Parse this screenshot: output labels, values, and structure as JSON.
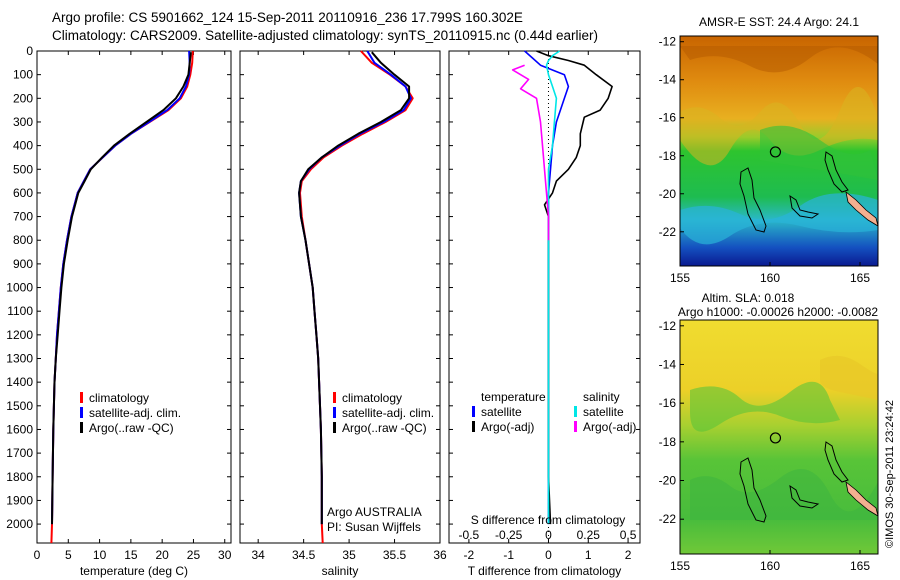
{
  "header": {
    "line1": "Argo profile: CS 5901662_124 15-Sep-2011 20110916_236 17.799S 160.302E",
    "line2": "Climatology: CARS2009. Satellite-adjusted climatology: synTS_20110915.nc (0.44d earlier)"
  },
  "stamp": "©IMOS 30-Sep-2011 23:24:42",
  "colors": {
    "climatology": "#ff0000",
    "satellite": "#0000ff",
    "argo": "#000000",
    "sal_satellite": "#00e6e6",
    "sal_argo": "#ff00ff"
  },
  "chart_data": [
    {
      "type": "line",
      "xlabel": "temperature (deg C)",
      "ylabel": "",
      "xlim": [
        0,
        31
      ],
      "ylim": [
        2080,
        0
      ],
      "xticks": [
        0,
        5,
        10,
        15,
        20,
        25,
        30
      ],
      "yticks": [
        0,
        100,
        200,
        300,
        400,
        500,
        600,
        700,
        800,
        900,
        1000,
        1100,
        1200,
        1300,
        1400,
        1500,
        1600,
        1700,
        1800,
        1900,
        2000
      ],
      "grid": false,
      "legend": {
        "placement": "lower-left",
        "entries": [
          "climatology",
          "satellite-adj. clim.",
          "Argo(..raw -QC)"
        ]
      },
      "series": [
        {
          "name": "climatology",
          "color": "#ff0000",
          "x": [
            24.9,
            24.8,
            24.5,
            24.0,
            23.0,
            21.0,
            18.0,
            15.0,
            12.5,
            10.5,
            8.5,
            7.5,
            6.5,
            5.5,
            4.8,
            4.2,
            3.8,
            3.5,
            3.2,
            3.0,
            2.8,
            2.7,
            2.6,
            2.5,
            2.4,
            2.3
          ],
          "y": [
            0,
            50,
            100,
            150,
            200,
            250,
            300,
            350,
            400,
            450,
            500,
            550,
            600,
            700,
            800,
            900,
            1000,
            1100,
            1200,
            1300,
            1400,
            1500,
            1600,
            1800,
            2000,
            2080
          ]
        },
        {
          "name": "satellite-adj. clim.",
          "color": "#0000ff",
          "x": [
            24.3,
            24.4,
            24.3,
            23.8,
            22.8,
            20.8,
            17.9,
            15.0,
            12.5,
            10.5,
            8.5,
            7.5,
            6.5,
            5.5,
            4.8,
            4.2,
            3.8,
            3.5,
            3.2,
            3.0,
            2.8,
            2.7,
            2.6,
            2.5,
            2.4
          ],
          "y": [
            0,
            50,
            100,
            150,
            200,
            250,
            300,
            350,
            400,
            450,
            500,
            550,
            600,
            700,
            800,
            900,
            1000,
            1100,
            1200,
            1300,
            1400,
            1500,
            1600,
            1800,
            2000
          ]
        },
        {
          "name": "Argo(..raw -QC)",
          "color": "#000000",
          "x": [
            24.6,
            24.4,
            24.2,
            23.4,
            22.2,
            20.2,
            17.5,
            14.8,
            12.3,
            10.4,
            8.6,
            7.6,
            6.6,
            5.6,
            4.9,
            4.3,
            3.9,
            3.6,
            3.3,
            3.0,
            2.8,
            2.7,
            2.6,
            2.5,
            2.4
          ],
          "y": [
            5,
            50,
            100,
            150,
            200,
            250,
            300,
            350,
            400,
            450,
            500,
            550,
            600,
            700,
            800,
            900,
            1000,
            1100,
            1200,
            1300,
            1400,
            1500,
            1600,
            1800,
            2000
          ]
        }
      ]
    },
    {
      "type": "line",
      "xlabel": "salinity",
      "ylabel": "",
      "xlim": [
        33.8,
        36.0
      ],
      "ylim": [
        2080,
        0
      ],
      "xticks": [
        34,
        34.5,
        35,
        35.5,
        36
      ],
      "grid": false,
      "legend": {
        "placement": "lower-right",
        "entries": [
          "climatology",
          "satellite-adj. clim.",
          "Argo(..raw -QC)"
        ]
      },
      "annotation": [
        "Argo AUSTRALIA",
        "PI: Susan Wijffels"
      ],
      "series": [
        {
          "name": "climatology",
          "color": "#ff0000",
          "x": [
            35.13,
            35.25,
            35.45,
            35.62,
            35.7,
            35.62,
            35.4,
            35.15,
            34.92,
            34.72,
            34.58,
            34.48,
            34.46,
            34.48,
            34.52,
            34.56,
            34.6,
            34.62,
            34.64,
            34.66,
            34.67,
            34.68,
            34.69,
            34.7,
            34.7,
            34.71
          ],
          "y": [
            0,
            50,
            100,
            150,
            200,
            250,
            300,
            350,
            400,
            450,
            500,
            550,
            600,
            700,
            800,
            900,
            1000,
            1100,
            1200,
            1300,
            1400,
            1500,
            1600,
            1800,
            2000,
            2080
          ]
        },
        {
          "name": "satellite-adj. clim.",
          "color": "#0000ff",
          "x": [
            35.2,
            35.28,
            35.46,
            35.62,
            35.68,
            35.6,
            35.38,
            35.12,
            34.9,
            34.7,
            34.56,
            34.47,
            34.45,
            34.47,
            34.52,
            34.56,
            34.6,
            34.62,
            34.64,
            34.66,
            34.67,
            34.68,
            34.69,
            34.7,
            34.7
          ],
          "y": [
            0,
            50,
            100,
            150,
            200,
            250,
            300,
            350,
            400,
            450,
            500,
            550,
            600,
            700,
            800,
            900,
            1000,
            1100,
            1200,
            1300,
            1400,
            1500,
            1600,
            1800,
            2000
          ]
        },
        {
          "name": "Argo(..raw -QC)",
          "color": "#000000",
          "x": [
            35.25,
            35.35,
            35.5,
            35.66,
            35.66,
            35.57,
            35.35,
            35.1,
            34.88,
            34.7,
            34.55,
            34.47,
            34.45,
            34.47,
            34.52,
            34.56,
            34.6,
            34.62,
            34.64,
            34.66,
            34.67,
            34.68,
            34.69,
            34.7,
            34.7
          ],
          "y": [
            5,
            50,
            100,
            150,
            200,
            250,
            300,
            350,
            400,
            450,
            500,
            550,
            600,
            700,
            800,
            900,
            1000,
            1100,
            1200,
            1300,
            1400,
            1500,
            1600,
            1800,
            2000
          ]
        }
      ]
    },
    {
      "type": "line",
      "xlabel": "T difference from climatology",
      "top_xlabel": "S difference from climatology",
      "ylabel": "",
      "xlim": [
        -2.5,
        2.3
      ],
      "ylim": [
        2080,
        0
      ],
      "xticks": [
        -2,
        -1,
        0,
        1,
        2
      ],
      "s_ticks": [
        {
          "label": "-0.5",
          "t": -2
        },
        {
          "label": "-0.25",
          "t": -1
        },
        {
          "label": "0",
          "t": 0
        },
        {
          "label": "0.25",
          "t": 1
        },
        {
          "label": "0.5",
          "t": 2
        }
      ],
      "grid": false,
      "legend": {
        "placement": "lower-center",
        "headers": [
          "temperature",
          "salinity"
        ],
        "entries": [
          "satellite",
          "Argo(-adj)",
          "satellite",
          "Argo(-adj)"
        ]
      },
      "series": [
        {
          "name": "temperature satellite",
          "color": "#0000ff",
          "x": [
            -0.6,
            -0.4,
            -0.2,
            0.4,
            0.5,
            0.4,
            0.3,
            0.2,
            0.1,
            0.05,
            0.0,
            0.0,
            0.0,
            0.0,
            0.0,
            0.0,
            0.0
          ],
          "y": [
            0,
            30,
            60,
            100,
            150,
            200,
            250,
            300,
            400,
            500,
            600,
            700,
            800,
            1000,
            1400,
            1800,
            2000
          ]
        },
        {
          "name": "temperature Argo(-adj)",
          "color": "#000000",
          "x": [
            -0.3,
            0.0,
            0.5,
            0.9,
            1.2,
            1.6,
            1.5,
            1.3,
            0.9,
            0.8,
            0.8,
            0.7,
            0.5,
            0.2,
            0.1,
            -0.1,
            0.0,
            0.0,
            0.0,
            0.0,
            0.0,
            0.05
          ],
          "y": [
            0,
            20,
            40,
            60,
            100,
            150,
            200,
            250,
            280,
            350,
            400,
            450,
            500,
            550,
            600,
            650,
            700,
            800,
            1000,
            1400,
            1800,
            2000
          ]
        },
        {
          "name": "salinity satellite",
          "color": "#00e6e6",
          "x": [
            0.28,
            0.1,
            0.0,
            -0.05,
            0.0,
            0.1,
            0.2,
            0.15,
            0.1,
            0.0,
            0.0,
            0.0,
            0.0,
            0.0
          ],
          "y": [
            0,
            20,
            40,
            60,
            100,
            150,
            200,
            300,
            400,
            500,
            600,
            800,
            1200,
            2000
          ]
        },
        {
          "name": "salinity Argo(-adj)",
          "color": "#ff00ff",
          "x": [
            -0.6,
            -0.9,
            -0.5,
            -0.7,
            -0.3,
            -0.2,
            -0.15,
            -0.1,
            -0.05,
            0.0,
            0.0
          ],
          "y": [
            60,
            80,
            120,
            160,
            200,
            300,
            400,
            500,
            600,
            700,
            800
          ]
        }
      ]
    }
  ],
  "maps": [
    {
      "title": "AMSR-E SST: 24.4 Argo: 24.1",
      "xticks": [
        "155",
        "160",
        "165"
      ],
      "yticks": [
        "-12",
        "-14",
        "-16",
        "-18",
        "-20",
        "-22"
      ],
      "xlim": [
        155,
        166
      ],
      "ylim": [
        -23.8,
        -11.7
      ],
      "float_position": {
        "lon": 160.302,
        "lat": -17.799
      }
    },
    {
      "title": "Altim. SLA: 0.018",
      "subtitle": "Argo h1000: -0.00026 h2000: -0.0082",
      "xticks": [
        "155",
        "160",
        "165"
      ],
      "yticks": [
        "-12",
        "-14",
        "-16",
        "-18",
        "-20",
        "-22"
      ],
      "xlim": [
        155,
        166
      ],
      "ylim": [
        -23.8,
        -11.7
      ],
      "float_position": {
        "lon": 160.302,
        "lat": -17.799
      }
    }
  ]
}
